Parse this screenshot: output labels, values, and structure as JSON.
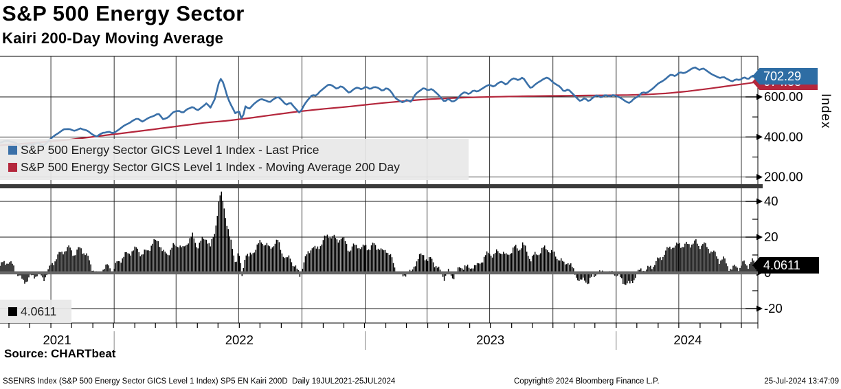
{
  "header": {
    "title": "S&P 500 Energy Sector",
    "subtitle": "Kairi 200-Day Moving Average"
  },
  "source_line": "Source: CHARTbeat",
  "footer": {
    "left": "SSENRS Index (S&P 500 Energy Sector GICS Level 1 Index) SP5 EN Kairi 200D  Daily 19JUL2021-25JUL2024",
    "center": "Copyright© 2024 Bloomberg Finance L.P.",
    "right": "25-Jul-2024 13:47:09"
  },
  "colors": {
    "price_line": "#3a70a8",
    "ma_line": "#b4273c",
    "price_tag_bg": "#2e6da4",
    "ma_tag_bg": "#b4273c",
    "kairi_bar": "#000000",
    "kairi_tag_bg": "#000000",
    "grid": "#1a1a1a",
    "panel_separator": "#3a3a3a",
    "zero_line": "#686868",
    "legend_bg": "#e8e8e8"
  },
  "x_axis": {
    "start_date": "19-Jul-2021",
    "end_date": "25-Jul-2024",
    "years": [
      {
        "label": "2021",
        "center_day": 83
      },
      {
        "label": "2022",
        "center_day": 348
      },
      {
        "label": "2023",
        "center_day": 713
      },
      {
        "label": "2024",
        "center_day": 1000
      }
    ],
    "year_boundary_days": [
      166,
      531,
      896
    ],
    "total_days": 1102
  },
  "chart_data": [
    {
      "type": "line",
      "panel": "price",
      "axis_label": "Index",
      "ylim": [
        164,
        802
      ],
      "yticks": [
        200,
        400,
        600
      ],
      "ytick_labels": [
        "200.00",
        "400.00",
        "600.00"
      ],
      "minor_yticks": [
        300,
        500,
        700
      ],
      "grid": true,
      "legend_position": "bottom-left-overlay",
      "series": [
        {
          "name": "S&P 500 Energy Sector GICS Level 1 Index - Last Price",
          "color": "#3a70a8",
          "last_value": 702.29,
          "last_label": "702.29",
          "points": [
            [
              0,
              372
            ],
            [
              12,
              381
            ],
            [
              22,
              369
            ],
            [
              33,
              351
            ],
            [
              43,
              363
            ],
            [
              55,
              370
            ],
            [
              63,
              358
            ],
            [
              72,
              383
            ],
            [
              82,
              414
            ],
            [
              93,
              437
            ],
            [
              101,
              443
            ],
            [
              109,
              429
            ],
            [
              117,
              445
            ],
            [
              126,
              431
            ],
            [
              134,
              413
            ],
            [
              141,
              401
            ],
            [
              150,
              421
            ],
            [
              158,
              428
            ],
            [
              164,
              417
            ],
            [
              172,
              438
            ],
            [
              182,
              458
            ],
            [
              192,
              479
            ],
            [
              200,
              490
            ],
            [
              207,
              478
            ],
            [
              214,
              490
            ],
            [
              222,
              505
            ],
            [
              230,
              519
            ],
            [
              237,
              489
            ],
            [
              245,
              500
            ],
            [
              253,
              524
            ],
            [
              260,
              532
            ],
            [
              266,
              518
            ],
            [
              273,
              540
            ],
            [
              280,
              553
            ],
            [
              287,
              531
            ],
            [
              294,
              553
            ],
            [
              300,
              568
            ],
            [
              306,
              545
            ],
            [
              312,
              588
            ],
            [
              316,
              640
            ],
            [
              319,
              680
            ],
            [
              322,
              690
            ],
            [
              326,
              655
            ],
            [
              330,
              610
            ],
            [
              334,
              572
            ],
            [
              338,
              545
            ],
            [
              343,
              512
            ],
            [
              347,
              540
            ],
            [
              352,
              484
            ],
            [
              357,
              552
            ],
            [
              362,
              540
            ],
            [
              368,
              562
            ],
            [
              374,
              575
            ],
            [
              380,
              590
            ],
            [
              386,
              583
            ],
            [
              392,
              570
            ],
            [
              398,
              591
            ],
            [
              404,
              603
            ],
            [
              410,
              582
            ],
            [
              416,
              562
            ],
            [
              422,
              574
            ],
            [
              427,
              550
            ],
            [
              431,
              536
            ],
            [
              436,
              520
            ],
            [
              442,
              556
            ],
            [
              448,
              585
            ],
            [
              454,
              612
            ],
            [
              460,
              605
            ],
            [
              466,
              630
            ],
            [
              472,
              650
            ],
            [
              478,
              662
            ],
            [
              484,
              655
            ],
            [
              490,
              641
            ],
            [
              496,
              652
            ],
            [
              502,
              637
            ],
            [
              508,
              620
            ],
            [
              514,
              636
            ],
            [
              520,
              648
            ],
            [
              526,
              640
            ],
            [
              532,
              651
            ],
            [
              538,
              640
            ],
            [
              544,
              652
            ],
            [
              550,
              643
            ],
            [
              556,
              629
            ],
            [
              562,
              645
            ],
            [
              568,
              627
            ],
            [
              574,
              598
            ],
            [
              580,
              584
            ],
            [
              586,
              570
            ],
            [
              592,
              589
            ],
            [
              598,
              576
            ],
            [
              604,
              612
            ],
            [
              610,
              631
            ],
            [
              616,
              645
            ],
            [
              622,
              629
            ],
            [
              628,
              641
            ],
            [
              634,
              621
            ],
            [
              640,
              599
            ],
            [
              646,
              579
            ],
            [
              652,
              592
            ],
            [
              658,
              574
            ],
            [
              664,
              589
            ],
            [
              670,
              611
            ],
            [
              676,
              622
            ],
            [
              682,
              614
            ],
            [
              688,
              631
            ],
            [
              694,
              624
            ],
            [
              700,
              641
            ],
            [
              706,
              652
            ],
            [
              712,
              661
            ],
            [
              718,
              654
            ],
            [
              724,
              668
            ],
            [
              730,
              676
            ],
            [
              736,
              661
            ],
            [
              742,
              681
            ],
            [
              748,
              692
            ],
            [
              754,
              684
            ],
            [
              760,
              697
            ],
            [
              766,
              669
            ],
            [
              772,
              645
            ],
            [
              778,
              661
            ],
            [
              784,
              676
            ],
            [
              790,
              691
            ],
            [
              796,
              695
            ],
            [
              802,
              679
            ],
            [
              808,
              664
            ],
            [
              814,
              649
            ],
            [
              820,
              627
            ],
            [
              826,
              641
            ],
            [
              832,
              617
            ],
            [
              838,
              599
            ],
            [
              844,
              580
            ],
            [
              850,
              593
            ],
            [
              856,
              578
            ],
            [
              862,
              596
            ],
            [
              868,
              606
            ],
            [
              874,
              597
            ],
            [
              880,
              611
            ],
            [
              886,
              600
            ],
            [
              892,
              613
            ],
            [
              898,
              604
            ],
            [
              904,
              591
            ],
            [
              910,
              579
            ],
            [
              916,
              569
            ],
            [
              922,
              589
            ],
            [
              928,
              603
            ],
            [
              934,
              622
            ],
            [
              940,
              617
            ],
            [
              946,
              636
            ],
            [
              952,
              651
            ],
            [
              958,
              669
            ],
            [
              964,
              683
            ],
            [
              970,
              696
            ],
            [
              976,
              711
            ],
            [
              982,
              704
            ],
            [
              988,
              721
            ],
            [
              994,
              716
            ],
            [
              1000,
              729
            ],
            [
              1006,
              741
            ],
            [
              1012,
              748
            ],
            [
              1016,
              737
            ],
            [
              1022,
              744
            ],
            [
              1028,
              729
            ],
            [
              1034,
              717
            ],
            [
              1040,
              704
            ],
            [
              1046,
              691
            ],
            [
              1052,
              701
            ],
            [
              1058,
              687
            ],
            [
              1064,
              675
            ],
            [
              1070,
              691
            ],
            [
              1076,
              684
            ],
            [
              1082,
              699
            ],
            [
              1088,
              691
            ],
            [
              1094,
              706
            ],
            [
              1100,
              697
            ],
            [
              1102,
              702.29
            ]
          ]
        },
        {
          "name": "S&P 500 Energy Sector GICS Level 1 Index - Moving Average 200 Day",
          "color": "#b4273c",
          "last_value": 674.88,
          "last_label": "674.88",
          "points": [
            [
              0,
              358
            ],
            [
              50,
              371
            ],
            [
              100,
              386
            ],
            [
              150,
              407
            ],
            [
              200,
              428
            ],
            [
              250,
              450
            ],
            [
              300,
              472
            ],
            [
              330,
              481
            ],
            [
              364,
              495
            ],
            [
              400,
              512
            ],
            [
              436,
              528
            ],
            [
              470,
              540
            ],
            [
              500,
              549
            ],
            [
              530,
              560
            ],
            [
              560,
              571
            ],
            [
              590,
              580
            ],
            [
              620,
              588
            ],
            [
              650,
              593
            ],
            [
              680,
              597
            ],
            [
              710,
              600
            ],
            [
              740,
              602
            ],
            [
              770,
              604
            ],
            [
              800,
              605
            ],
            [
              830,
              606
            ],
            [
              850,
              607
            ],
            [
              880,
              608
            ],
            [
              910,
              609
            ],
            [
              940,
              612
            ],
            [
              970,
              618
            ],
            [
              1000,
              628
            ],
            [
              1030,
              641
            ],
            [
              1060,
              655
            ],
            [
              1080,
              664
            ],
            [
              1102,
              674.88
            ]
          ]
        }
      ]
    },
    {
      "type": "bar",
      "panel": "kairi-oscillator",
      "name": "Kairi 200-Day",
      "color": "#000000",
      "ylim": [
        -28,
        47
      ],
      "yticks": [
        -20,
        0,
        20,
        40
      ],
      "ytick_labels": [
        "-20",
        "0",
        "20",
        "40"
      ],
      "minor_yticks": [
        -10,
        10,
        30
      ],
      "grid": true,
      "zero_line": true,
      "last_value": 4.0611,
      "last_label": "4.0611",
      "legend_label": "4.0611",
      "derived_from": "kairi = (last_price - moving_average_200d) / moving_average_200d * 100"
    }
  ]
}
